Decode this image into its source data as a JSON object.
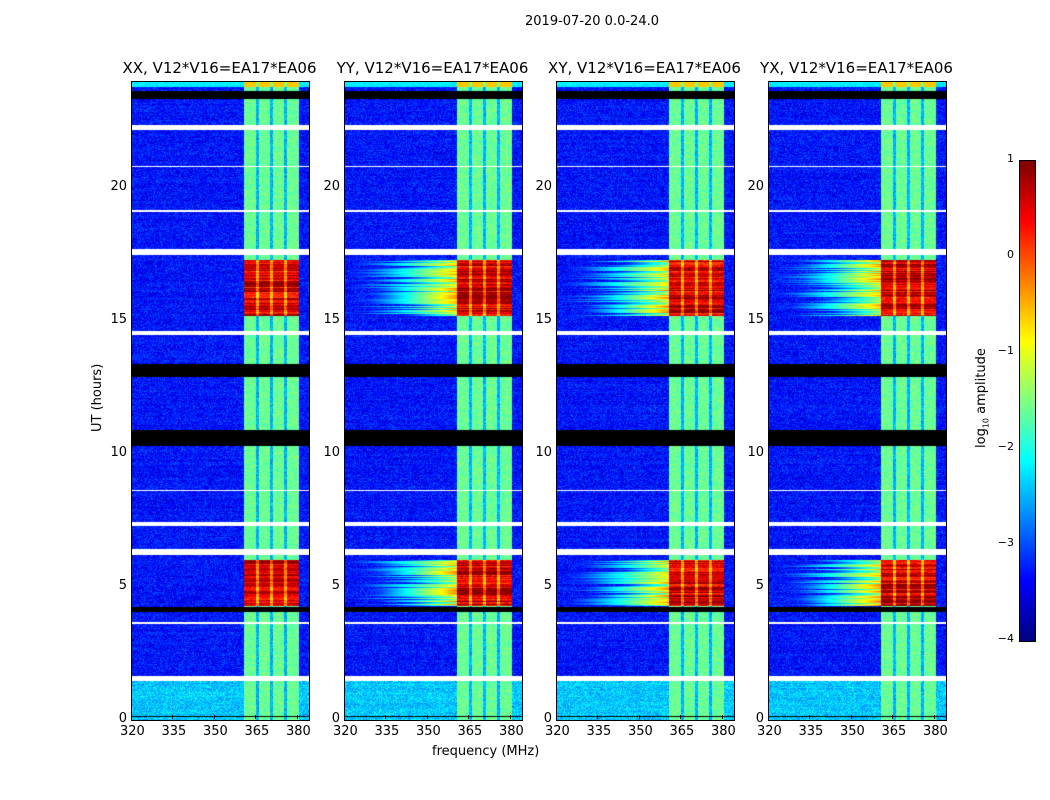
{
  "suptitle": "2019-07-20 0.0-24.0",
  "colors": {
    "flagged": "#ffffff",
    "zero": "#000000",
    "colormap": "jet"
  },
  "chart_data": {
    "type": "heatmap",
    "title": "2019-07-20 0.0-24.0",
    "xlabel": "frequency (MHz)",
    "ylabel": "UT (hours)",
    "xlim": [
      320,
      384
    ],
    "ylim": [
      0,
      24
    ],
    "xticks": [
      "320",
      "335",
      "350",
      "365",
      "380"
    ],
    "yticks": [
      "0",
      "5",
      "10",
      "15",
      "20"
    ],
    "panels": [
      {
        "title": "XX, V12*V16=EA17*EA06"
      },
      {
        "title": "YY, V12*V16=EA17*EA06"
      },
      {
        "title": "XY, V12*V16=EA17*EA06"
      },
      {
        "title": "YX, V12*V16=EA17*EA06"
      }
    ],
    "colorbar": {
      "label": "log10 amplitude",
      "label_main": "log",
      "label_sub": "10",
      "label_rest": " amplitude",
      "range": [
        -4,
        1
      ],
      "ticks": [
        "1",
        "0",
        "−1",
        "−2",
        "−3",
        "−4"
      ]
    },
    "background_level": -3.3,
    "early_background_level": -2.4,
    "early_period_hours": [
      0,
      1.5
    ],
    "rfi_band_mhz": [
      360.5,
      380.3
    ],
    "rfi_band_level": -1.6,
    "rfi_subband_edges_mhz": [
      365.5,
      370.5,
      375.5
    ],
    "strong_rfi_periods_hours": [
      [
        4.3,
        6.0
      ],
      [
        15.2,
        17.3
      ]
    ],
    "strong_rfi_level": 0.6,
    "flagged_hours": [
      [
        22.2,
        22.4
      ],
      [
        19.1,
        19.2
      ],
      [
        17.5,
        17.7
      ],
      [
        14.5,
        14.65
      ],
      [
        7.3,
        7.45
      ],
      [
        6.2,
        6.45
      ],
      [
        1.45,
        1.65
      ],
      [
        3.6,
        3.7
      ],
      [
        8.6,
        8.65
      ],
      [
        20.8,
        20.85
      ]
    ],
    "zero_hours": [
      [
        23.35,
        23.65
      ],
      [
        10.3,
        10.9
      ],
      [
        12.9,
        13.4
      ],
      [
        4.05,
        4.25
      ],
      [
        0.1,
        0.15
      ]
    ]
  }
}
